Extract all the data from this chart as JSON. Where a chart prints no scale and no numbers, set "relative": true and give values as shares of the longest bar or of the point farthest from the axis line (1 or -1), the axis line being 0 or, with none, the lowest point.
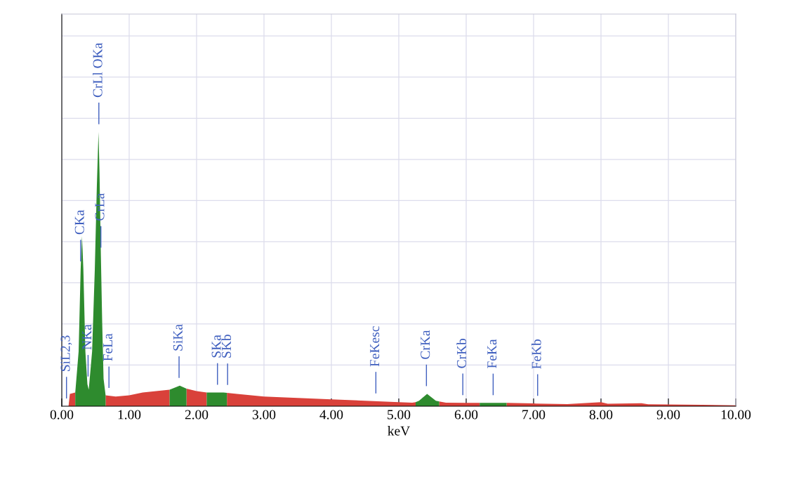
{
  "chart_data": {
    "type": "area",
    "relative": true,
    "xlabel": "keV",
    "grid": true,
    "xlim": [
      0,
      10
    ],
    "xticks": [
      {
        "value": 0,
        "label": "0.00"
      },
      {
        "value": 1,
        "label": "1.00"
      },
      {
        "value": 2,
        "label": "2.00"
      },
      {
        "value": 3,
        "label": "3.00"
      },
      {
        "value": 4,
        "label": "4.00"
      },
      {
        "value": 5,
        "label": "5.00"
      },
      {
        "value": 6,
        "label": "6.00"
      },
      {
        "value": 7,
        "label": "7.00"
      },
      {
        "value": 8,
        "label": "8.00"
      },
      {
        "value": 9,
        "label": "9.00"
      },
      {
        "value": 10,
        "label": "10.00"
      }
    ],
    "series": [
      {
        "color": "#d9413a",
        "x": [
          0.1,
          0.12,
          0.2,
          0.4,
          0.65,
          0.8,
          1.0,
          1.2,
          1.4,
          1.6,
          1.7,
          1.85,
          2.0,
          2.15,
          2.3,
          2.45,
          2.6,
          3.0,
          3.5,
          4.0,
          4.5,
          5.0,
          5.2,
          5.25,
          5.4,
          5.6,
          5.7,
          6.0,
          6.2,
          6.3,
          6.6,
          7.0,
          7.5,
          8.0,
          8.1,
          8.6,
          8.7,
          9.5,
          10.0
        ],
        "values": [
          0,
          0.045,
          0.05,
          null,
          0.04,
          0.035,
          0.04,
          0.05,
          0.055,
          0.06,
          null,
          0.064,
          0.055,
          0.05,
          null,
          0.049,
          0.045,
          0.035,
          0.03,
          0.025,
          0.02,
          0.015,
          0.013,
          0.015,
          null,
          0.017,
          0.013,
          0.012,
          0.012,
          null,
          0.012,
          0.01,
          0.008,
          0.015,
          0.009,
          0.011,
          0.007,
          0.005,
          0.003
        ]
      },
      {
        "color": "#2e8b2e",
        "x": [
          0.2,
          0.25,
          0.28,
          0.3,
          0.32,
          0.35,
          0.38,
          0.4,
          0.45,
          0.49,
          0.52,
          0.545,
          0.56,
          0.58,
          0.6,
          0.62,
          0.65,
          0.66,
          1.6,
          1.75,
          1.85,
          1.9,
          2.15,
          2.2,
          2.4,
          2.45,
          2.5,
          5.25,
          5.3,
          5.42,
          5.55,
          5.6,
          5.7,
          6.2,
          6.4,
          6.6
        ],
        "values": [
          0.05,
          0.2,
          0.5,
          0.62,
          0.5,
          0.2,
          0.08,
          0.06,
          0.2,
          0.5,
          0.8,
          1.0,
          0.85,
          0.55,
          0.3,
          0.1,
          0.04,
          null,
          0.06,
          0.075,
          0.064,
          null,
          0.05,
          0.05,
          0.05,
          0.049,
          null,
          0.015,
          0.02,
          0.045,
          0.02,
          0.017,
          null,
          0.012,
          0.012,
          0.012
        ]
      }
    ],
    "ref_lines": [
      {
        "axis": "x",
        "value": 0.07,
        "label": "SiL2,3"
      },
      {
        "axis": "x",
        "value": 0.28,
        "label": "CKa"
      },
      {
        "axis": "x",
        "value": 0.39,
        "label": "NKa"
      },
      {
        "axis": "x",
        "value": 0.55,
        "label": "CrLl OKa"
      },
      {
        "axis": "x",
        "value": 0.58,
        "label": "CrLa"
      },
      {
        "axis": "x",
        "value": 0.7,
        "label": "FeLa"
      },
      {
        "axis": "x",
        "value": 1.74,
        "label": "SiKa"
      },
      {
        "axis": "x",
        "value": 2.31,
        "label": "SKa"
      },
      {
        "axis": "x",
        "value": 2.46,
        "label": "SKb"
      },
      {
        "axis": "x",
        "value": 4.66,
        "label": "FeKesc"
      },
      {
        "axis": "x",
        "value": 5.41,
        "label": "CrKa"
      },
      {
        "axis": "x",
        "value": 5.95,
        "label": "CrKb"
      },
      {
        "axis": "x",
        "value": 6.4,
        "label": "FeKa"
      },
      {
        "axis": "x",
        "value": 7.06,
        "label": "FeKb"
      }
    ]
  }
}
